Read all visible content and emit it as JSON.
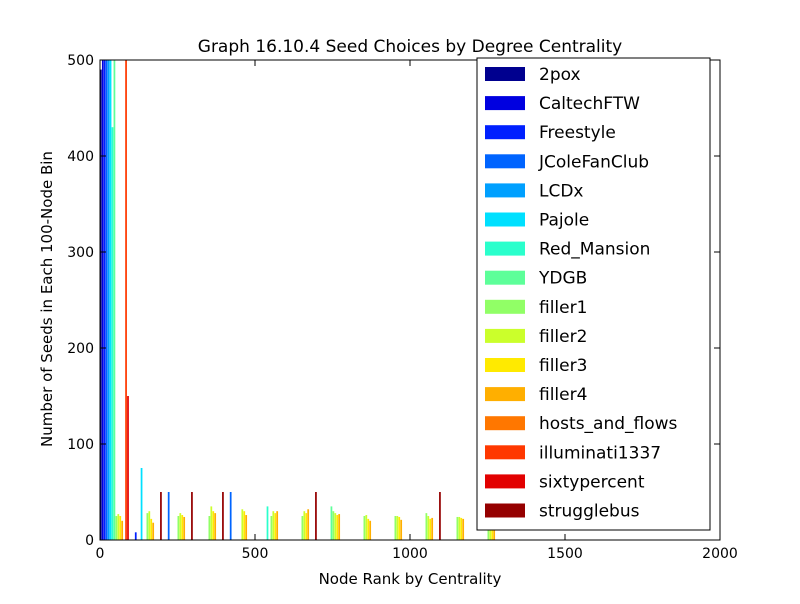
{
  "chart_data": {
    "type": "bar",
    "title": "Graph 16.10.4 Seed Choices by Degree Centrality",
    "xlabel": "Node Rank by Centrality",
    "ylabel": "Number of Seeds in Each 100-Node Bin",
    "xlim": [
      0,
      2000
    ],
    "ylim": [
      0,
      500
    ],
    "xticks": [
      0,
      500,
      1000,
      1500,
      2000
    ],
    "yticks": [
      0,
      100,
      200,
      300,
      400,
      500
    ],
    "grid": false,
    "legend_position": "top-right",
    "bin_width": 100,
    "series_names": [
      "2pox",
      "CaltechFTW",
      "Freestyle",
      "JColeFanClub",
      "LCDx",
      "Pajole",
      "Red_Mansion",
      "YDGB",
      "filler1",
      "filler2",
      "filler3",
      "filler4",
      "hosts_and_flows",
      "illuminati1337",
      "sixtypercent",
      "strugglebus"
    ],
    "series_colors": [
      "#00008f",
      "#0000e0",
      "#0020ff",
      "#0064ff",
      "#00a0ff",
      "#00e0ff",
      "#2affcc",
      "#5dff99",
      "#91ff66",
      "#cbff2b",
      "#ffea00",
      "#ffaf00",
      "#ff7700",
      "#ff3800",
      "#e20000",
      "#950000"
    ],
    "x": [
      0,
      100,
      200,
      300,
      400,
      500,
      600,
      700,
      800,
      900,
      1000,
      1100,
      1200,
      1300,
      1400,
      1500,
      1600,
      1700,
      1800,
      1900
    ],
    "series": [
      {
        "name": "2pox",
        "values": [
          490,
          0,
          0,
          0,
          0,
          0,
          0,
          0,
          0,
          0,
          0,
          0,
          0,
          0,
          0,
          0,
          0,
          0,
          0,
          0
        ]
      },
      {
        "name": "CaltechFTW",
        "values": [
          500,
          0,
          0,
          0,
          0,
          0,
          0,
          0,
          0,
          0,
          0,
          0,
          0,
          0,
          0,
          0,
          0,
          0,
          0,
          0
        ]
      },
      {
        "name": "Freestyle",
        "values": [
          500,
          8,
          0,
          0,
          0,
          0,
          0,
          0,
          0,
          0,
          0,
          0,
          0,
          0,
          0,
          0,
          0,
          0,
          0,
          0
        ]
      },
      {
        "name": "JColeFanClub",
        "values": [
          500,
          0,
          50,
          0,
          50,
          0,
          0,
          0,
          0,
          0,
          0,
          0,
          0,
          0,
          0,
          0,
          0,
          0,
          0,
          0
        ]
      },
      {
        "name": "LCDx",
        "values": [
          500,
          0,
          0,
          0,
          0,
          0,
          0,
          0,
          0,
          0,
          0,
          0,
          0,
          0,
          0,
          0,
          0,
          0,
          0,
          0
        ]
      },
      {
        "name": "Pajole",
        "values": [
          500,
          75,
          0,
          0,
          0,
          0,
          0,
          0,
          0,
          0,
          0,
          0,
          0,
          0,
          0,
          0,
          0,
          0,
          0,
          0
        ]
      },
      {
        "name": "Red_Mansion",
        "values": [
          430,
          0,
          0,
          0,
          0,
          35,
          0,
          0,
          0,
          0,
          0,
          0,
          0,
          0,
          0,
          0,
          0,
          0,
          0,
          0
        ]
      },
      {
        "name": "YDGB",
        "values": [
          500,
          0,
          0,
          0,
          0,
          0,
          0,
          35,
          0,
          0,
          0,
          0,
          0,
          0,
          0,
          0,
          0,
          0,
          0,
          0
        ]
      },
      {
        "name": "filler1",
        "values": [
          25,
          28,
          25,
          25,
          0,
          25,
          25,
          30,
          25,
          25,
          28,
          24,
          25,
          0,
          0,
          0,
          0,
          0,
          0,
          0
        ]
      },
      {
        "name": "filler2",
        "values": [
          27,
          30,
          28,
          35,
          32,
          30,
          30,
          28,
          26,
          25,
          25,
          24,
          40,
          0,
          0,
          0,
          0,
          0,
          0,
          0
        ]
      },
      {
        "name": "filler3",
        "values": [
          25,
          22,
          26,
          30,
          30,
          28,
          28,
          26,
          22,
          24,
          22,
          23,
          35,
          0,
          0,
          0,
          0,
          0,
          0,
          0
        ]
      },
      {
        "name": "filler4",
        "values": [
          20,
          18,
          24,
          28,
          26,
          30,
          32,
          27,
          20,
          21,
          23,
          22,
          28,
          0,
          0,
          0,
          0,
          0,
          0,
          0
        ]
      },
      {
        "name": "hosts_and_flows",
        "values": [
          0,
          0,
          0,
          0,
          0,
          0,
          0,
          0,
          0,
          0,
          0,
          0,
          0,
          0,
          0,
          0,
          0,
          0,
          0,
          0
        ]
      },
      {
        "name": "illuminati1337",
        "values": [
          500,
          0,
          0,
          0,
          0,
          0,
          0,
          0,
          0,
          0,
          0,
          0,
          0,
          0,
          0,
          0,
          0,
          0,
          0,
          0
        ]
      },
      {
        "name": "sixtypercent",
        "values": [
          150,
          0,
          0,
          0,
          0,
          0,
          0,
          0,
          0,
          0,
          0,
          0,
          0,
          0,
          0,
          0,
          0,
          0,
          0,
          0
        ]
      },
      {
        "name": "strugglebus",
        "values": [
          0,
          50,
          50,
          50,
          0,
          0,
          50,
          0,
          0,
          0,
          50,
          0,
          0,
          0,
          0,
          0,
          0,
          0,
          0,
          0
        ]
      }
    ]
  }
}
